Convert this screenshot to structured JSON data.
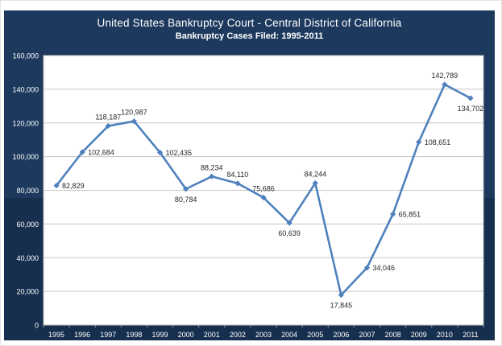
{
  "header": {
    "title": "United States Bankruptcy Court - Central District of California",
    "subtitle": "Bankruptcy Cases Filed:  1995-2011"
  },
  "chart_data": {
    "type": "line",
    "title": "United States Bankruptcy Court - Central District of California",
    "subtitle": "Bankruptcy Cases Filed:  1995-2011",
    "categories": [
      "1995",
      "1996",
      "1997",
      "1998",
      "1999",
      "2000",
      "2001",
      "2002",
      "2003",
      "2004",
      "2005",
      "2006",
      "2007",
      "2008",
      "2009",
      "2010",
      "2011"
    ],
    "values": [
      82829,
      102684,
      118187,
      120987,
      102435,
      80784,
      88234,
      84110,
      75686,
      60639,
      84244,
      17845,
      34046,
      65851,
      108651,
      142789,
      134702
    ],
    "point_labels": [
      "82,829",
      "102,684",
      "118,187",
      "120,987",
      "102,435",
      "80,784",
      "88,234",
      "84,110",
      "75,686",
      "60,639",
      "84,244",
      "17,845",
      "34,046",
      "65,851",
      "108,651",
      "142,789",
      "134,702"
    ],
    "label_positions": [
      "right",
      "right",
      "above",
      "above",
      "right",
      "below",
      "above",
      "above",
      "above",
      "below",
      "above",
      "below",
      "right",
      "right",
      "right",
      "above",
      "below"
    ],
    "xlabel": "",
    "ylabel": "",
    "ylim": [
      0,
      160000
    ],
    "ytick_step": 20000,
    "ytick_labels": [
      "0",
      "20,000",
      "40,000",
      "60,000",
      "80,000",
      "100,000",
      "120,000",
      "140,000",
      "160,000"
    ],
    "grid": "horizontal",
    "legend": "none",
    "marker": "diamond",
    "colors": {
      "panel_background_top": "#1d3a5e",
      "panel_background_bottom": "#172f4e",
      "plot_background": "#ffffff",
      "plot_border": "#bfbfbf",
      "gridline": "#c6c6c6",
      "line": "#4f81bd",
      "marker": "#4f81bd",
      "data_label_text": "#262626",
      "axis_text": "#ffffff"
    }
  }
}
